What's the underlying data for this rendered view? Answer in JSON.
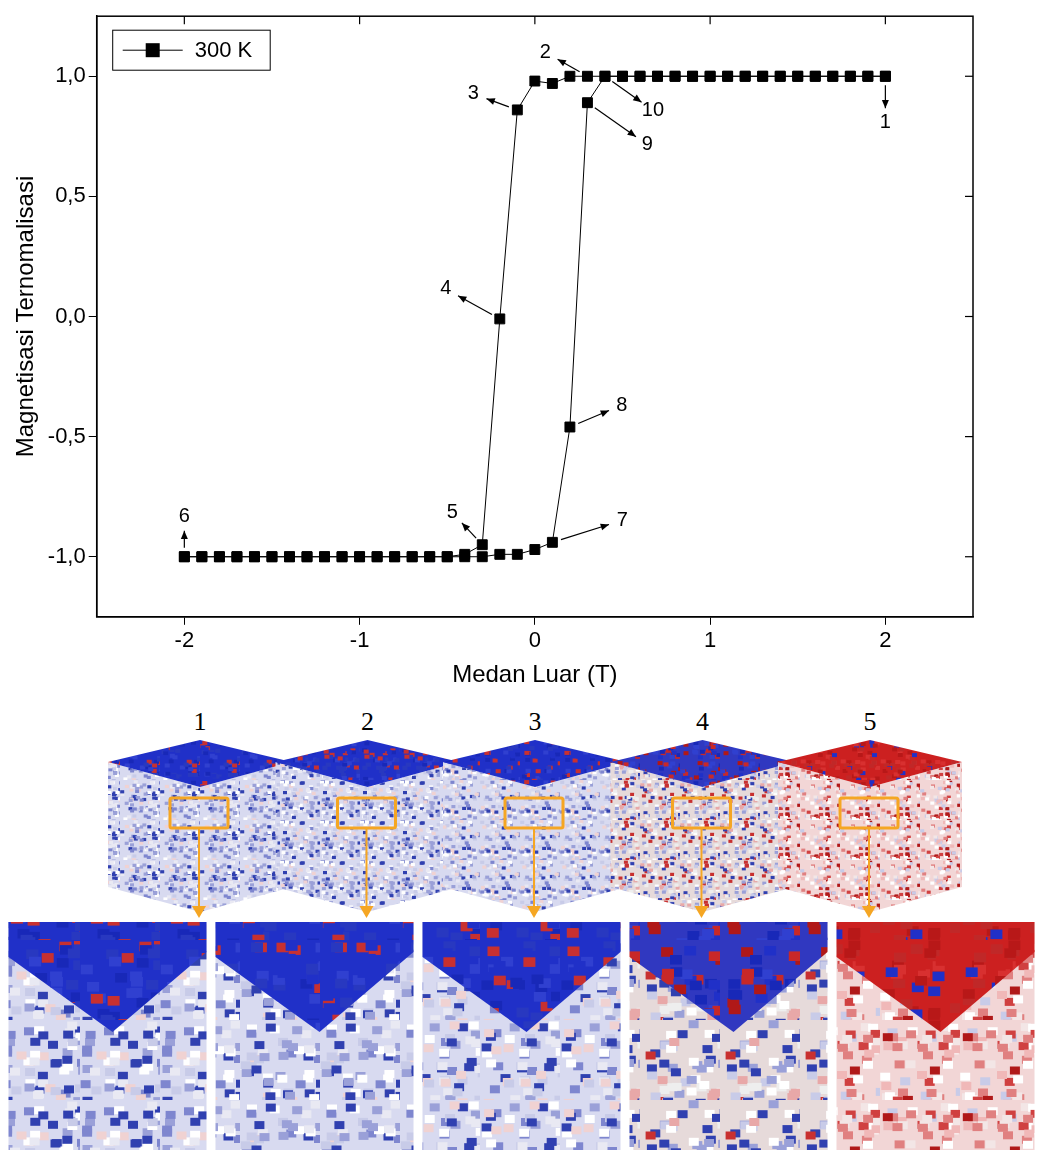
{
  "chart_data": {
    "type": "line",
    "x_label": "Medan Luar (T)",
    "y_label": "Magnetisasi Ternomalisasi",
    "x": [
      2,
      1.9,
      1.8,
      1.7,
      1.6,
      1.5,
      1.4,
      1.3,
      1.2,
      1.1,
      1,
      0.9,
      0.8,
      0.7,
      0.6,
      0.5,
      0.4,
      0.3,
      0.2,
      0.1,
      0,
      -0.1,
      -0.2,
      -0.3,
      -0.4,
      -0.5,
      -0.6,
      -0.7,
      -0.8,
      -0.9,
      -1,
      -1.1,
      -1.2,
      -1.3,
      -1.4,
      -1.5,
      -1.6,
      -1.7,
      -1.8,
      -1.9,
      -2,
      -2,
      -1.9,
      -1.8,
      -1.7,
      -1.6,
      -1.5,
      -1.4,
      -1.3,
      -1.2,
      -1.1,
      -1,
      -0.9,
      -0.8,
      -0.7,
      -0.6,
      -0.5,
      -0.4,
      -0.3,
      -0.2,
      -0.1,
      0,
      0.1,
      0.2,
      0.3,
      0.4,
      0.5,
      0.6,
      0.7,
      0.8,
      0.9,
      1,
      1.1,
      1.2,
      1.3,
      1.4,
      1.5,
      1.6,
      1.7,
      1.8,
      1.9,
      2
    ],
    "series": [
      {
        "name": "300 K",
        "color": "#000000",
        "marker": "square",
        "line_style": "solid",
        "values": [
          1,
          1,
          1,
          1,
          1,
          1,
          1,
          1,
          1,
          1,
          1,
          1,
          1,
          1,
          1,
          1,
          1,
          1,
          1,
          0.97,
          0.98,
          0.86,
          -0.01,
          -0.95,
          -0.99,
          -1,
          -1,
          -1,
          -1,
          -1,
          -1,
          -1,
          -1,
          -1,
          -1,
          -1,
          -1,
          -1,
          -1,
          -1,
          -1,
          -1,
          -1,
          -1,
          -1,
          -1,
          -1,
          -1,
          -1,
          -1,
          -1,
          -1,
          -1,
          -1,
          -1,
          -1,
          -1,
          -1,
          -1,
          -0.99,
          -0.99,
          -0.97,
          -0.94,
          -0.46,
          0.89,
          1,
          1,
          1,
          1,
          1,
          1,
          1,
          1,
          1,
          1,
          1,
          1,
          1,
          1,
          1,
          1,
          1
        ]
      }
    ],
    "xlim": [
      -2.5,
      2.5
    ],
    "xticks": [
      -2,
      -1,
      0,
      1,
      2
    ],
    "ylim": [
      -1.25,
      1.25
    ],
    "yticks": [
      {
        "value": -1,
        "label": "-1,0"
      },
      {
        "value": -0.5,
        "label": "-0,5"
      },
      {
        "value": 0,
        "label": "0,0"
      },
      {
        "value": 0.5,
        "label": "0,5"
      },
      {
        "value": 1,
        "label": "1,0"
      }
    ],
    "grid": false,
    "legend": "upper left",
    "annotations": [
      {
        "text": "1",
        "x": 2,
        "y": 1
      },
      {
        "text": "2",
        "x": 0.3,
        "y": 1
      },
      {
        "text": "3",
        "x": -0.1,
        "y": 0.86
      },
      {
        "text": "4",
        "x": -0.2,
        "y": -0.01
      },
      {
        "text": "5",
        "x": -0.3,
        "y": -0.95
      },
      {
        "text": "6",
        "x": -2,
        "y": -1
      },
      {
        "text": "7",
        "x": 0.1,
        "y": -0.94
      },
      {
        "text": "8",
        "x": 0.2,
        "y": -0.46
      },
      {
        "text": "9",
        "x": 0.3,
        "y": 0.89
      },
      {
        "text": "10",
        "x": 0.4,
        "y": 1
      }
    ]
  },
  "snapshots": {
    "labels": [
      "1",
      "2",
      "3",
      "4",
      "5"
    ]
  }
}
